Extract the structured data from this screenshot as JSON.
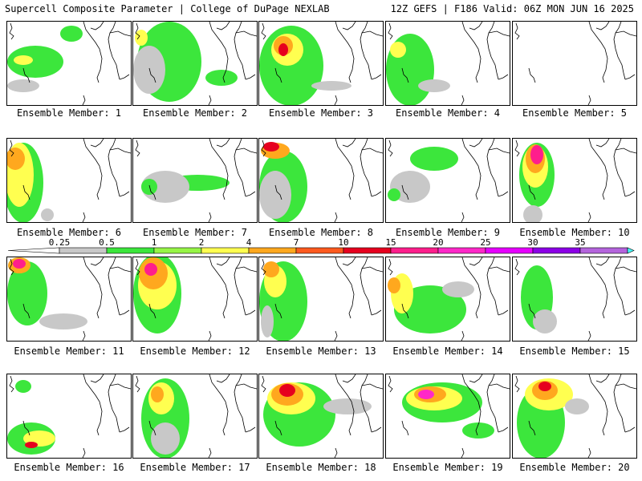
{
  "header": {
    "title": "Supercell Composite Parameter | College of DuPage NEXLAB",
    "run_info": "12Z GEFS | F186 Valid: 06Z MON JUN 16 2025"
  },
  "colorbar": {
    "ticks": [
      "0.25",
      "0.5",
      "1",
      "2",
      "4",
      "7",
      "10",
      "15",
      "20",
      "25",
      "30",
      "35"
    ],
    "colors": [
      "#c8c8c8",
      "#3ce63c",
      "#96f546",
      "#ffff50",
      "#ffa81e",
      "#ff5a1e",
      "#e6001e",
      "#ff1e8c",
      "#ff28c8",
      "#e600ff",
      "#8c00e6",
      "#b464dc",
      "#46ffff"
    ]
  },
  "members": [
    {
      "label": "Ensemble Member: 1"
    },
    {
      "label": "Ensemble Member: 2"
    },
    {
      "label": "Ensemble Member: 3"
    },
    {
      "label": "Ensemble Member: 4"
    },
    {
      "label": "Ensemble Member: 5"
    },
    {
      "label": "Ensemble Member: 6"
    },
    {
      "label": "Ensemble Member: 7"
    },
    {
      "label": "Ensemble Member: 8"
    },
    {
      "label": "Ensemble Member: 9"
    },
    {
      "label": "Ensemble Member: 10"
    },
    {
      "label": "Ensemble Member: 11"
    },
    {
      "label": "Ensemble Member: 12"
    },
    {
      "label": "Ensemble Member: 13"
    },
    {
      "label": "Ensemble Member: 14"
    },
    {
      "label": "Ensemble Member: 15"
    },
    {
      "label": "Ensemble Member: 16"
    },
    {
      "label": "Ensemble Member: 17"
    },
    {
      "label": "Ensemble Member: 18"
    },
    {
      "label": "Ensemble Member: 19"
    },
    {
      "label": "Ensemble Member: 20"
    }
  ]
}
